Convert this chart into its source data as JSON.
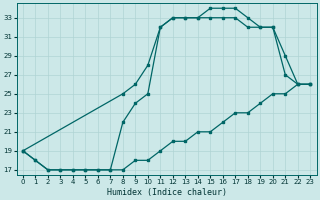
{
  "xlabel": "Humidex (Indice chaleur)",
  "bg_color": "#cce8e8",
  "line_color": "#006666",
  "grid_color": "#b0d4d4",
  "xlim": [
    -0.5,
    23.5
  ],
  "ylim": [
    16.5,
    34.5
  ],
  "xticks": [
    0,
    1,
    2,
    3,
    4,
    5,
    6,
    7,
    8,
    9,
    10,
    11,
    12,
    13,
    14,
    15,
    16,
    17,
    18,
    19,
    20,
    21,
    22,
    23
  ],
  "yticks": [
    17,
    19,
    21,
    23,
    25,
    27,
    29,
    31,
    33
  ],
  "line1_x": [
    0,
    1,
    2,
    3,
    4,
    5,
    6,
    7,
    8,
    9,
    10,
    11,
    12,
    13,
    14,
    15,
    16,
    17,
    18,
    19,
    20,
    21,
    22,
    23
  ],
  "line1_y": [
    19,
    18,
    17,
    17,
    17,
    17,
    17,
    17,
    17,
    18,
    18,
    19,
    20,
    20,
    21,
    21,
    22,
    23,
    23,
    24,
    25,
    25,
    26,
    26
  ],
  "line2_x": [
    0,
    1,
    2,
    3,
    4,
    5,
    6,
    7,
    8,
    9,
    10,
    11,
    12,
    13,
    14,
    15,
    16,
    17,
    18,
    19,
    20,
    21,
    22,
    23
  ],
  "line2_y": [
    19,
    18,
    17,
    17,
    17,
    17,
    17,
    17,
    22,
    24,
    25,
    32,
    33,
    33,
    33,
    33,
    33,
    33,
    32,
    32,
    32,
    27,
    26,
    26
  ],
  "line3_x": [
    0,
    8,
    9,
    10,
    11,
    12,
    13,
    14,
    15,
    16,
    17,
    18,
    19,
    20,
    21,
    22,
    23
  ],
  "line3_y": [
    19,
    25,
    26,
    28,
    32,
    33,
    33,
    33,
    34,
    34,
    34,
    33,
    32,
    32,
    29,
    26,
    26
  ]
}
